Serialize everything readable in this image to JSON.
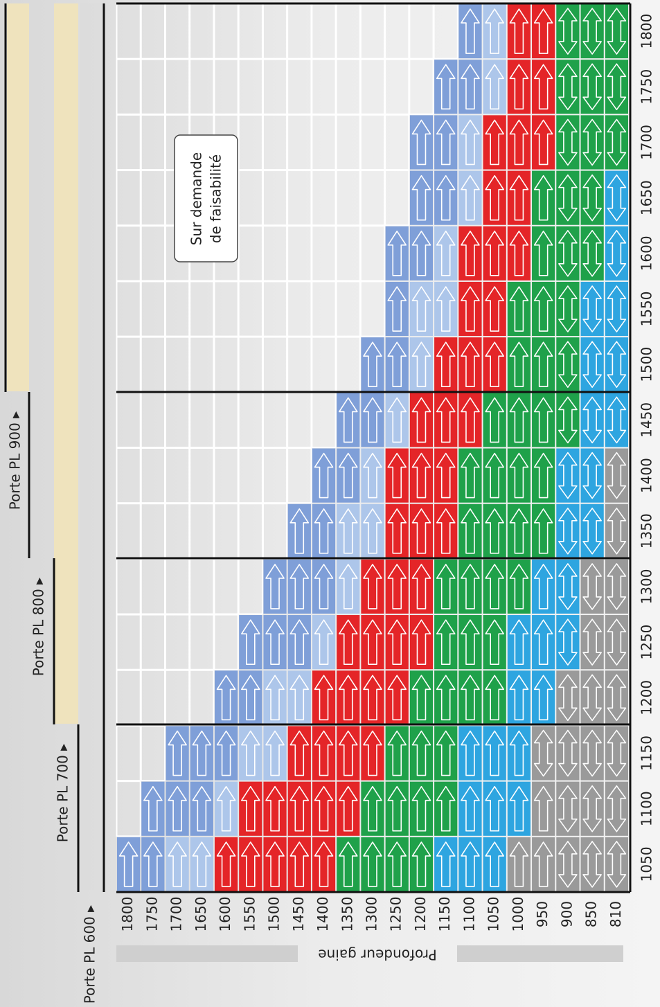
{
  "table": {
    "door_labels": [
      "Porte PL 600 ▸",
      "Porte PL 700 ▸",
      "Porte PL 800 ▸",
      "Porte PL 900 ▸"
    ],
    "depth_title": "Profondeur gaine",
    "note": [
      "Sur demande",
      "de faisabilité"
    ],
    "depths": [
      "1800",
      "1750",
      "1700",
      "1650",
      "1600",
      "1550",
      "1500",
      "1450",
      "1400",
      "1350",
      "1300",
      "1250",
      "1200",
      "1150",
      "1100",
      "1050",
      "1000",
      "950",
      "900",
      "850",
      "810"
    ],
    "widths": [
      "1050",
      "1100",
      "1150",
      "1200",
      "1250",
      "1300",
      "1350",
      "1400",
      "1450",
      "1500",
      "1550",
      "1600",
      "1650",
      "1700",
      "1750",
      "1800"
    ],
    "palette": {
      "B": "#7f9fd8",
      "L": "#adc6ea",
      "R": "#e42528",
      "G": "#1fa14a",
      "C": "#2ea5e0",
      "Y": "#9a9a9a"
    },
    "cells": [
      [
        "B",
        "B",
        "L",
        "L",
        "R",
        "R",
        "R",
        "R",
        "R",
        "G",
        "G",
        "G",
        "G",
        "C",
        "C",
        "C",
        "Y",
        "Y",
        "Yd",
        "Yd",
        "Yd"
      ],
      [
        "",
        "B",
        "B",
        "B",
        "L",
        "R",
        "R",
        "R",
        "R",
        "R",
        "G",
        "G",
        "G",
        "G",
        "C",
        "C",
        "C",
        "Y",
        "Yd",
        "Yd",
        "Yd"
      ],
      [
        "",
        "",
        "B",
        "B",
        "B",
        "L",
        "L",
        "R",
        "R",
        "R",
        "R",
        "G",
        "G",
        "G",
        "C",
        "C",
        "C",
        "Yd",
        "Yd",
        "Yd",
        "Yd"
      ],
      [
        "",
        "",
        "",
        "",
        "B",
        "B",
        "L",
        "L",
        "R",
        "R",
        "R",
        "R",
        "G",
        "G",
        "G",
        "G",
        "C",
        "C",
        "Yd",
        "Yd",
        "Yd"
      ],
      [
        "",
        "",
        "",
        "",
        "",
        "B",
        "B",
        "B",
        "L",
        "R",
        "R",
        "R",
        "R",
        "G",
        "G",
        "G",
        "C",
        "C",
        "Cd",
        "Yd",
        "Yd"
      ],
      [
        "",
        "",
        "",
        "",
        "",
        "",
        "B",
        "B",
        "B",
        "L",
        "R",
        "R",
        "R",
        "G",
        "G",
        "G",
        "G",
        "C",
        "Cd",
        "Yd",
        "Yd"
      ],
      [
        "",
        "",
        "",
        "",
        "",
        "",
        "",
        "B",
        "B",
        "L",
        "L",
        "R",
        "R",
        "R",
        "G",
        "G",
        "G",
        "G",
        "Cd",
        "Cd",
        "Yd"
      ],
      [
        "",
        "",
        "",
        "",
        "",
        "",
        "",
        "",
        "B",
        "B",
        "L",
        "R",
        "R",
        "R",
        "G",
        "G",
        "G",
        "G",
        "Cd",
        "Cd",
        "Yd"
      ],
      [
        "",
        "",
        "",
        "",
        "",
        "",
        "",
        "",
        "",
        "B",
        "B",
        "L",
        "R",
        "R",
        "R",
        "G",
        "G",
        "G",
        "Gd",
        "Cd",
        "Cd"
      ],
      [
        "",
        "",
        "",
        "",
        "",
        "",
        "",
        "",
        "",
        "",
        "B",
        "B",
        "L",
        "R",
        "R",
        "R",
        "G",
        "G",
        "Gd",
        "Cd",
        "Cd"
      ],
      [
        "",
        "",
        "",
        "",
        "",
        "",
        "",
        "",
        "",
        "",
        "",
        "B",
        "L",
        "L",
        "R",
        "R",
        "G",
        "G",
        "Gd",
        "Cd",
        "Cd"
      ],
      [
        "",
        "",
        "",
        "",
        "",
        "",
        "",
        "",
        "",
        "",
        "",
        "B",
        "B",
        "L",
        "R",
        "R",
        "R",
        "G",
        "Gd",
        "Gd",
        "Cd"
      ],
      [
        "",
        "",
        "",
        "",
        "",
        "",
        "",
        "",
        "",
        "",
        "",
        "",
        "B",
        "B",
        "L",
        "R",
        "R",
        "G",
        "Gd",
        "Gd",
        "Cd"
      ],
      [
        "",
        "",
        "",
        "",
        "",
        "",
        "",
        "",
        "",
        "",
        "",
        "",
        "B",
        "B",
        "L",
        "R",
        "R",
        "R",
        "Gd",
        "Gd",
        "Gd"
      ],
      [
        "",
        "",
        "",
        "",
        "",
        "",
        "",
        "",
        "",
        "",
        "",
        "",
        "",
        "B",
        "B",
        "L",
        "R",
        "R",
        "Gd",
        "Gd",
        "Gd"
      ],
      [
        "",
        "",
        "",
        "",
        "",
        "",
        "",
        "",
        "",
        "",
        "",
        "",
        "",
        "",
        "B",
        "L",
        "R",
        "R",
        "Gd",
        "Gd",
        "Gd"
      ]
    ]
  }
}
